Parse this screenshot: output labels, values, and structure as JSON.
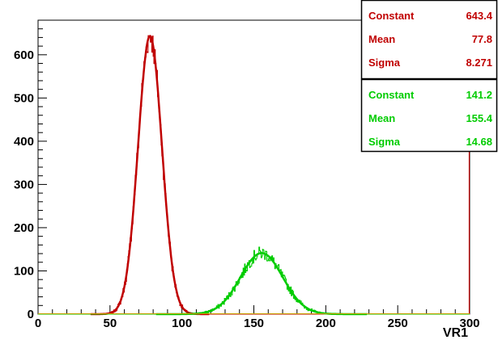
{
  "chart_data": {
    "type": "line",
    "title": "",
    "xlabel": "VR1",
    "ylabel": "",
    "xlim": [
      0,
      300
    ],
    "ylim": [
      0,
      680
    ],
    "x_ticks": [
      0,
      50,
      100,
      150,
      200,
      250,
      300
    ],
    "y_ticks": [
      0,
      100,
      200,
      300,
      400,
      500,
      600
    ],
    "grid": false,
    "legend": "top-right",
    "series": [
      {
        "color": "#c00000",
        "fit": {
          "constant": 643.4,
          "mean": 77.8,
          "sigma": 8.271
        },
        "histogram_peak": 650
      },
      {
        "color": "#00cc00",
        "fit": {
          "constant": 141.2,
          "mean": 155.4,
          "sigma": 14.68
        },
        "histogram_peak": 168
      }
    ],
    "stats_boxes": [
      {
        "color": "#c00000",
        "rows": [
          {
            "label": "Constant",
            "value": "643.4"
          },
          {
            "label": "Mean",
            "value": "77.8"
          },
          {
            "label": "Sigma",
            "value": "8.271"
          }
        ]
      },
      {
        "color": "#00cc00",
        "rows": [
          {
            "label": "Constant",
            "value": "141.2"
          },
          {
            "label": "Mean",
            "value": "155.4"
          },
          {
            "label": "Sigma",
            "value": "14.68"
          }
        ]
      }
    ]
  }
}
